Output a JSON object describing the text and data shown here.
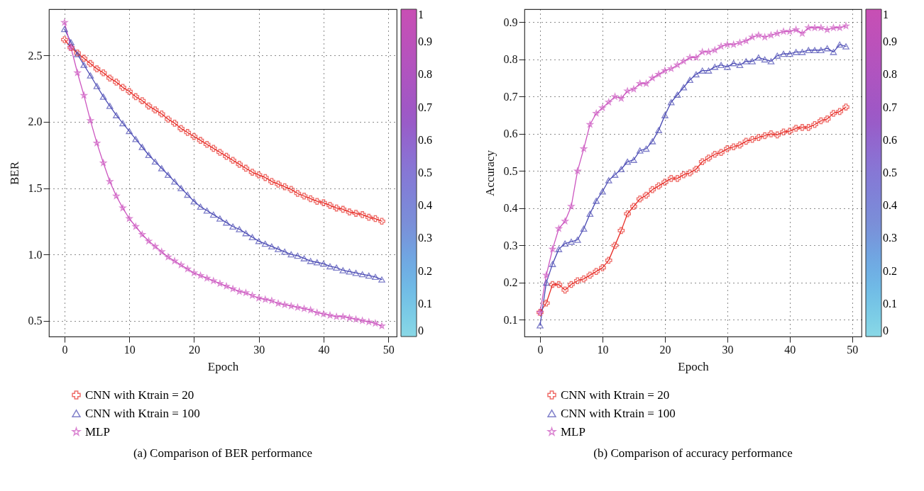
{
  "chart_data": [
    {
      "type": "line",
      "title": "(a) Comparison of BER performance",
      "xlabel": "Epoch",
      "ylabel": "BER",
      "xlim": [
        -2.4,
        51.3
      ],
      "xticks": [
        0,
        10,
        20,
        30,
        40,
        50
      ],
      "ylim": [
        0.38,
        2.85
      ],
      "yticks": [
        0.5,
        {
          "value": 1,
          "label": "1.0"
        },
        1.5,
        {
          "value": 2,
          "label": "2.0"
        },
        2.5
      ],
      "clim": [
        0,
        1
      ],
      "cticks": [
        0,
        0.1,
        0.2,
        0.3,
        0.4,
        0.5,
        0.6,
        0.7,
        0.8,
        0.9,
        1
      ],
      "grid": true,
      "legend": "bottom",
      "x": [
        0,
        1,
        2,
        3,
        4,
        5,
        6,
        7,
        8,
        9,
        10,
        11,
        12,
        13,
        14,
        15,
        16,
        17,
        18,
        19,
        20,
        21,
        22,
        23,
        24,
        25,
        26,
        27,
        28,
        29,
        30,
        31,
        32,
        33,
        34,
        35,
        36,
        37,
        38,
        39,
        40,
        41,
        42,
        43,
        44,
        45,
        46,
        47,
        48,
        49
      ],
      "series": [
        {
          "name": "CNN with Ktrain = 20",
          "color": "#e8302a",
          "marker": "cross",
          "values": [
            2.62,
            2.56,
            2.52,
            2.48,
            2.44,
            2.4,
            2.37,
            2.33,
            2.3,
            2.26,
            2.23,
            2.19,
            2.16,
            2.12,
            2.09,
            2.06,
            2.02,
            1.99,
            1.95,
            1.92,
            1.89,
            1.86,
            1.83,
            1.8,
            1.77,
            1.74,
            1.71,
            1.68,
            1.65,
            1.62,
            1.6,
            1.58,
            1.55,
            1.53,
            1.51,
            1.49,
            1.46,
            1.44,
            1.42,
            1.4,
            1.39,
            1.37,
            1.35,
            1.34,
            1.32,
            1.31,
            1.3,
            1.28,
            1.27,
            1.25
          ]
        },
        {
          "name": "CNN with Ktrain = 100",
          "color": "#4b4bb4",
          "marker": "triangle",
          "values": [
            2.7,
            2.6,
            2.51,
            2.43,
            2.35,
            2.27,
            2.19,
            2.12,
            2.05,
            1.99,
            1.93,
            1.87,
            1.81,
            1.75,
            1.7,
            1.65,
            1.6,
            1.55,
            1.5,
            1.45,
            1.4,
            1.36,
            1.33,
            1.3,
            1.27,
            1.24,
            1.21,
            1.19,
            1.16,
            1.13,
            1.1,
            1.08,
            1.06,
            1.04,
            1.02,
            1.0,
            0.99,
            0.97,
            0.95,
            0.94,
            0.93,
            0.91,
            0.9,
            0.88,
            0.87,
            0.86,
            0.85,
            0.84,
            0.83,
            0.81
          ]
        },
        {
          "name": "MLP",
          "color": "#cc55c0",
          "marker": "star",
          "values": [
            2.75,
            2.56,
            2.37,
            2.2,
            2.01,
            1.84,
            1.69,
            1.55,
            1.44,
            1.35,
            1.27,
            1.21,
            1.15,
            1.1,
            1.06,
            1.02,
            0.98,
            0.95,
            0.92,
            0.89,
            0.86,
            0.84,
            0.82,
            0.8,
            0.78,
            0.76,
            0.74,
            0.72,
            0.71,
            0.69,
            0.67,
            0.66,
            0.65,
            0.63,
            0.62,
            0.61,
            0.6,
            0.59,
            0.58,
            0.56,
            0.55,
            0.54,
            0.53,
            0.53,
            0.52,
            0.51,
            0.5,
            0.49,
            0.48,
            0.46
          ]
        }
      ]
    },
    {
      "type": "line",
      "title": "(b) Comparison of accuracy performance",
      "xlabel": "Epoch",
      "ylabel": "Accuracy",
      "xlim": [
        -2.5,
        51.5
      ],
      "xticks": [
        0,
        10,
        20,
        30,
        40,
        50
      ],
      "ylim": [
        0.055,
        0.935
      ],
      "yticks": [
        0.1,
        0.2,
        0.3,
        0.4,
        0.5,
        0.6,
        0.7,
        0.8,
        0.9
      ],
      "clim": [
        0,
        1
      ],
      "cticks": [
        0,
        0.1,
        0.2,
        0.3,
        0.4,
        0.5,
        0.6,
        0.7,
        0.8,
        0.9,
        1
      ],
      "grid": true,
      "legend": "bottom",
      "x": [
        0,
        1,
        2,
        3,
        4,
        5,
        6,
        7,
        8,
        9,
        10,
        11,
        12,
        13,
        14,
        15,
        16,
        17,
        18,
        19,
        20,
        21,
        22,
        23,
        24,
        25,
        26,
        27,
        28,
        29,
        30,
        31,
        32,
        33,
        34,
        35,
        36,
        37,
        38,
        39,
        40,
        41,
        42,
        43,
        44,
        45,
        46,
        47,
        48,
        49
      ],
      "series": [
        {
          "name": "CNN with Ktrain = 20",
          "color": "#e8302a",
          "marker": "cross",
          "values": [
            0.12,
            0.145,
            0.195,
            0.195,
            0.18,
            0.195,
            0.205,
            0.21,
            0.22,
            0.23,
            0.24,
            0.26,
            0.3,
            0.34,
            0.385,
            0.405,
            0.425,
            0.435,
            0.45,
            0.46,
            0.47,
            0.48,
            0.48,
            0.49,
            0.495,
            0.505,
            0.525,
            0.535,
            0.545,
            0.55,
            0.56,
            0.565,
            0.57,
            0.58,
            0.585,
            0.59,
            0.595,
            0.6,
            0.597,
            0.605,
            0.607,
            0.615,
            0.617,
            0.617,
            0.625,
            0.635,
            0.64,
            0.655,
            0.66,
            0.672
          ]
        },
        {
          "name": "CNN with Ktrain = 100",
          "color": "#4b4bb4",
          "marker": "triangle",
          "values": [
            0.085,
            0.2,
            0.25,
            0.29,
            0.305,
            0.31,
            0.315,
            0.345,
            0.385,
            0.42,
            0.445,
            0.475,
            0.49,
            0.505,
            0.525,
            0.53,
            0.555,
            0.56,
            0.58,
            0.61,
            0.65,
            0.685,
            0.705,
            0.725,
            0.745,
            0.76,
            0.77,
            0.77,
            0.78,
            0.785,
            0.78,
            0.79,
            0.785,
            0.795,
            0.795,
            0.805,
            0.8,
            0.795,
            0.81,
            0.815,
            0.815,
            0.82,
            0.82,
            0.825,
            0.825,
            0.825,
            0.83,
            0.82,
            0.84,
            0.835
          ]
        },
        {
          "name": "MLP",
          "color": "#cc55c0",
          "marker": "star",
          "values": [
            0.12,
            0.22,
            0.29,
            0.345,
            0.365,
            0.405,
            0.5,
            0.56,
            0.625,
            0.655,
            0.67,
            0.685,
            0.7,
            0.695,
            0.715,
            0.72,
            0.735,
            0.735,
            0.75,
            0.76,
            0.77,
            0.775,
            0.785,
            0.795,
            0.805,
            0.805,
            0.82,
            0.82,
            0.825,
            0.835,
            0.84,
            0.84,
            0.845,
            0.85,
            0.86,
            0.865,
            0.86,
            0.865,
            0.87,
            0.875,
            0.875,
            0.88,
            0.87,
            0.885,
            0.885,
            0.885,
            0.88,
            0.885,
            0.885,
            0.89
          ]
        }
      ]
    }
  ]
}
